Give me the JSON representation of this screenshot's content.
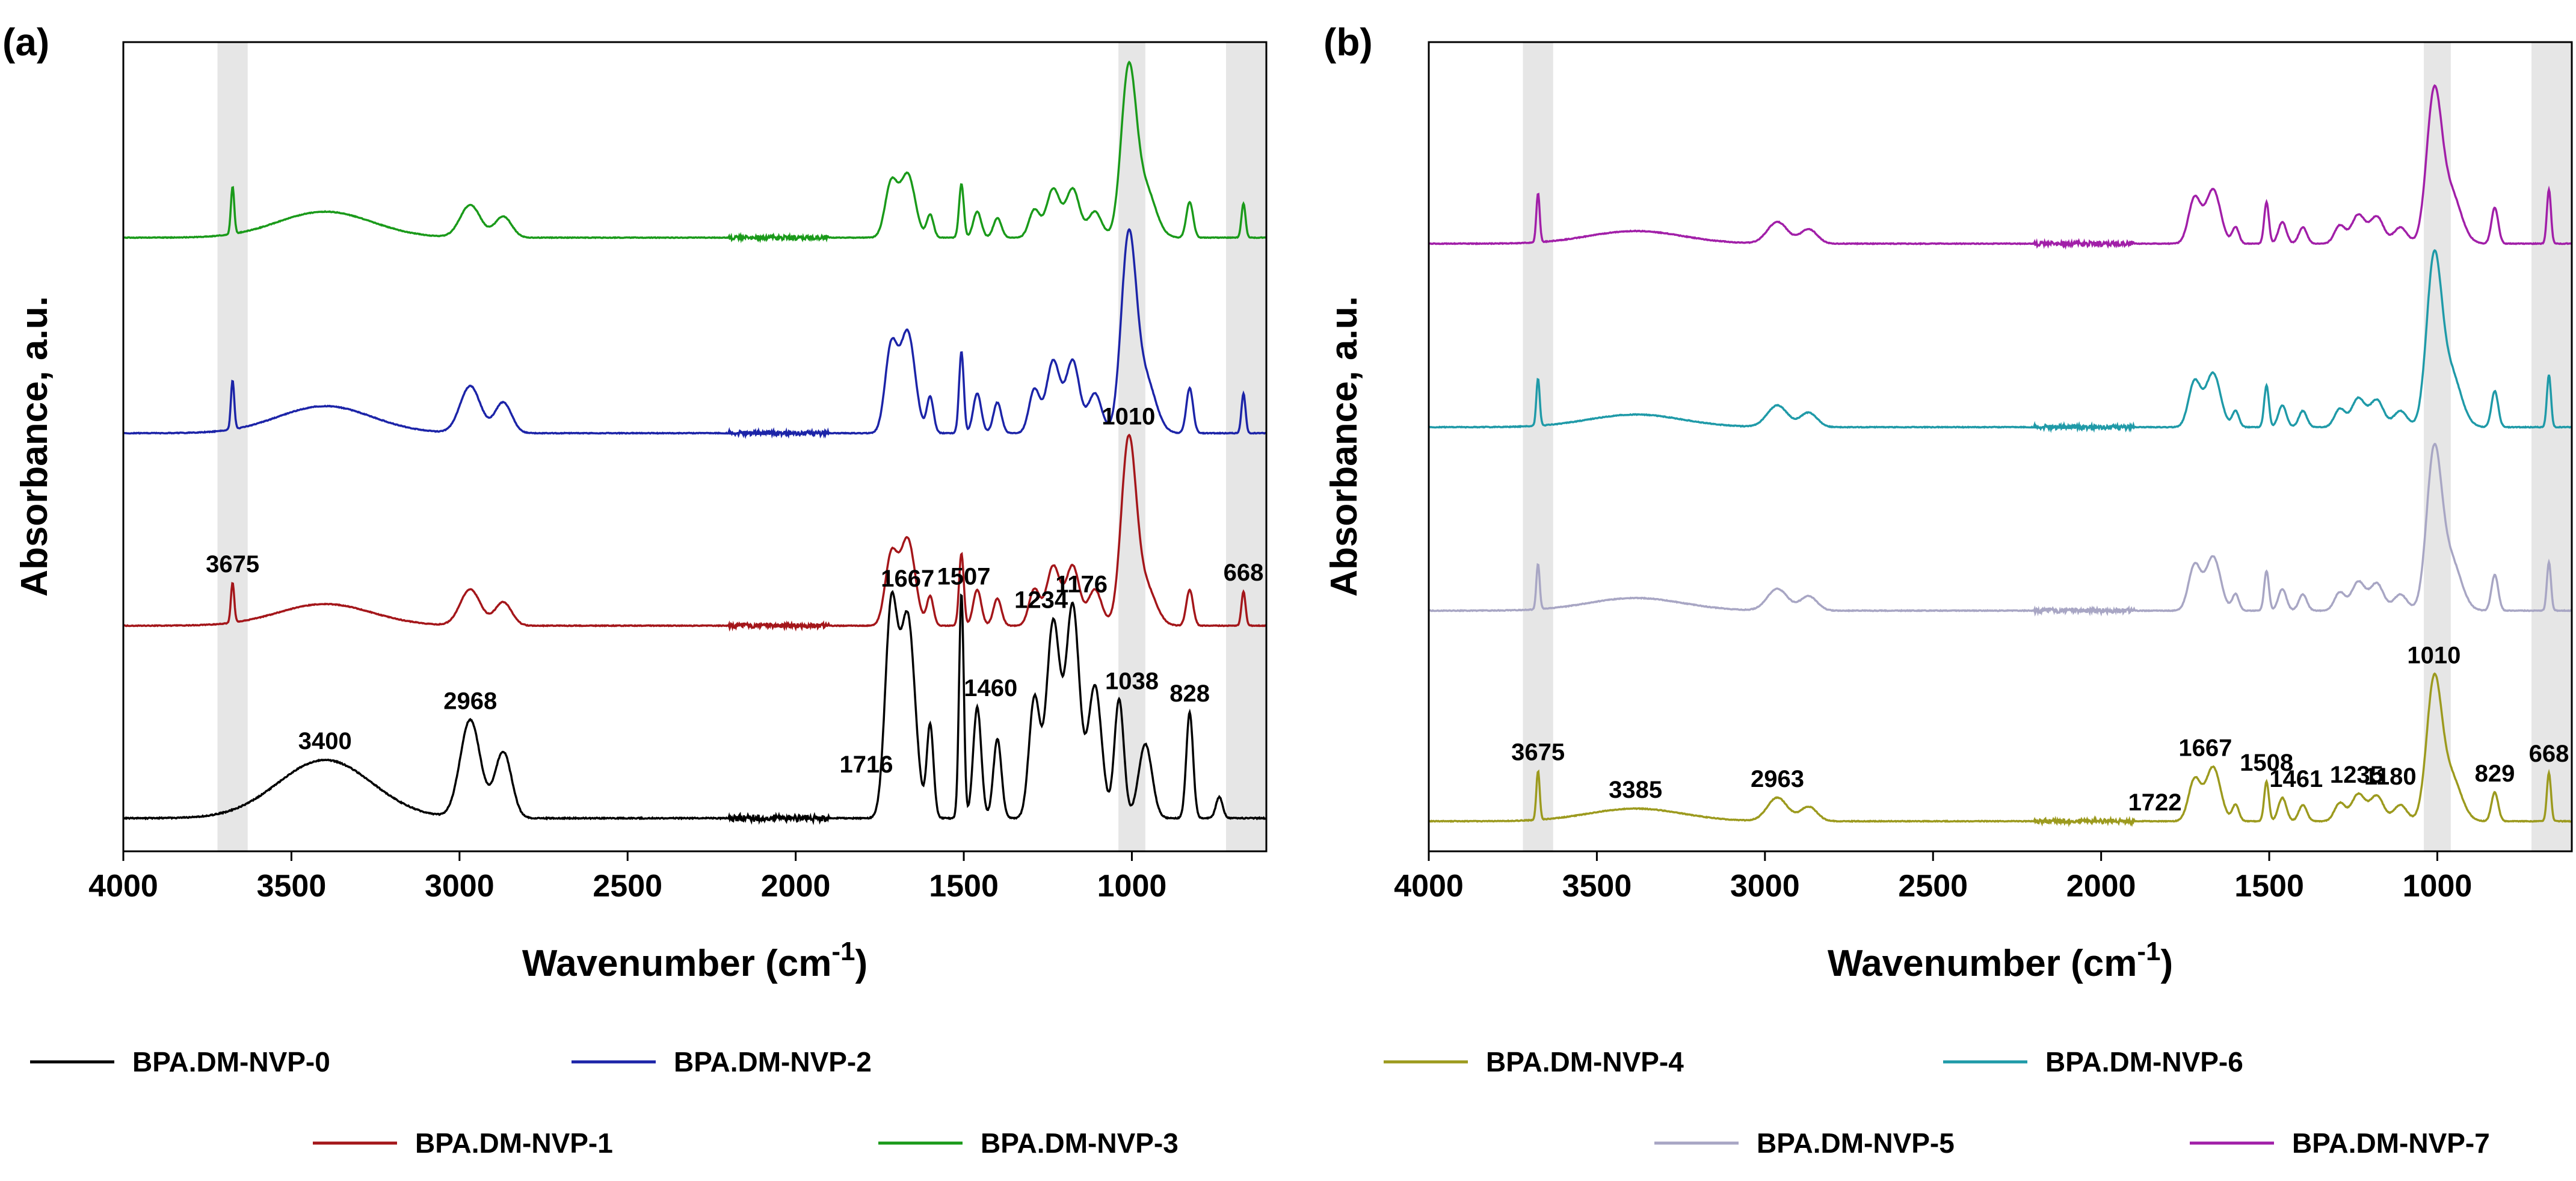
{
  "chart_data": [
    {
      "panel_label": "(a)",
      "type": "line",
      "title": "",
      "xlabel": "Wavenumber (cm",
      "xlabel_sup": "-1",
      "xlabel_close": ")",
      "ylabel": "Absorbance, a.u.",
      "xlim": [
        4000,
        600
      ],
      "x_reversed": true,
      "xticks": [
        "4000",
        "3500",
        "3000",
        "2500",
        "2000",
        "1500",
        "1000"
      ],
      "highlight_bands": [
        [
          3720,
          3630
        ],
        [
          1040,
          960
        ],
        [
          720,
          600
        ]
      ],
      "series": [
        {
          "name": "BPA.DM-NVP-0",
          "color": "#000000",
          "peaks": [
            [
              3400,
              0.22,
              140
            ],
            [
              2968,
              0.37,
              30
            ],
            [
              2870,
              0.25,
              25
            ],
            [
              1716,
              0.78,
              18
            ],
            [
              1667,
              0.76,
              22
            ],
            [
              1600,
              0.35,
              10
            ],
            [
              1507,
              0.85,
              7
            ],
            [
              1460,
              0.42,
              12
            ],
            [
              1400,
              0.3,
              12
            ],
            [
              1290,
              0.45,
              16
            ],
            [
              1234,
              0.74,
              20
            ],
            [
              1176,
              0.8,
              20
            ],
            [
              1110,
              0.5,
              20
            ],
            [
              1038,
              0.45,
              14
            ],
            [
              960,
              0.28,
              20
            ],
            [
              828,
              0.4,
              10
            ],
            [
              740,
              0.08,
              10
            ]
          ]
        },
        {
          "name": "BPA.DM-NVP-1",
          "color": "#a4161a",
          "peaks": [
            [
              3675,
              0.22,
              5
            ],
            [
              3400,
              0.12,
              140
            ],
            [
              2968,
              0.2,
              30
            ],
            [
              2870,
              0.13,
              25
            ],
            [
              1716,
              0.38,
              18
            ],
            [
              1667,
              0.48,
              22
            ],
            [
              1600,
              0.16,
              10
            ],
            [
              1507,
              0.4,
              7
            ],
            [
              1460,
              0.2,
              12
            ],
            [
              1400,
              0.15,
              12
            ],
            [
              1290,
              0.2,
              16
            ],
            [
              1234,
              0.33,
              20
            ],
            [
              1176,
              0.33,
              20
            ],
            [
              1110,
              0.2,
              20
            ],
            [
              1010,
              1.0,
              22
            ],
            [
              960,
              0.22,
              30
            ],
            [
              828,
              0.2,
              10
            ],
            [
              668,
              0.19,
              6
            ]
          ]
        },
        {
          "name": "BPA.DM-NVP-2",
          "color": "#1c24a8",
          "peaks": [
            [
              3675,
              0.27,
              5
            ],
            [
              3400,
              0.15,
              140
            ],
            [
              2968,
              0.26,
              30
            ],
            [
              2870,
              0.17,
              25
            ],
            [
              1716,
              0.47,
              18
            ],
            [
              1667,
              0.56,
              22
            ],
            [
              1600,
              0.2,
              10
            ],
            [
              1507,
              0.45,
              7
            ],
            [
              1460,
              0.22,
              12
            ],
            [
              1400,
              0.17,
              12
            ],
            [
              1290,
              0.24,
              16
            ],
            [
              1234,
              0.4,
              20
            ],
            [
              1176,
              0.4,
              20
            ],
            [
              1110,
              0.22,
              20
            ],
            [
              1010,
              1.05,
              22
            ],
            [
              960,
              0.3,
              30
            ],
            [
              828,
              0.25,
              10
            ],
            [
              668,
              0.22,
              6
            ]
          ]
        },
        {
          "name": "BPA.DM-NVP-3",
          "color": "#1a9a1a",
          "peaks": [
            [
              3675,
              0.29,
              5
            ],
            [
              3400,
              0.16,
              140
            ],
            [
              2968,
              0.2,
              30
            ],
            [
              2870,
              0.13,
              25
            ],
            [
              1716,
              0.33,
              18
            ],
            [
              1667,
              0.39,
              22
            ],
            [
              1600,
              0.14,
              10
            ],
            [
              1507,
              0.33,
              7
            ],
            [
              1460,
              0.16,
              12
            ],
            [
              1400,
              0.12,
              12
            ],
            [
              1290,
              0.17,
              16
            ],
            [
              1234,
              0.3,
              20
            ],
            [
              1176,
              0.3,
              20
            ],
            [
              1110,
              0.16,
              20
            ],
            [
              1010,
              1.0,
              22
            ],
            [
              960,
              0.3,
              30
            ],
            [
              828,
              0.22,
              10
            ],
            [
              668,
              0.21,
              6
            ]
          ]
        }
      ],
      "annotations": [
        {
          "text": "3400",
          "x": 3400,
          "series": "BPA.DM-NVP-0"
        },
        {
          "text": "2968",
          "x": 2968,
          "series": "BPA.DM-NVP-0"
        },
        {
          "text": "1716",
          "x": 1790,
          "series": "BPA.DM-NVP-0"
        },
        {
          "text": "1667",
          "x": 1667,
          "series": "BPA.DM-NVP-0"
        },
        {
          "text": "1507",
          "x": 1500,
          "series": "BPA.DM-NVP-0"
        },
        {
          "text": "1460",
          "x": 1420,
          "series": "BPA.DM-NVP-0"
        },
        {
          "text": "1234",
          "x": 1270,
          "series": "BPA.DM-NVP-0"
        },
        {
          "text": "1176",
          "x": 1150,
          "series": "BPA.DM-NVP-0"
        },
        {
          "text": "1038",
          "x": 1000,
          "series": "BPA.DM-NVP-0"
        },
        {
          "text": "828",
          "x": 828,
          "series": "BPA.DM-NVP-0"
        },
        {
          "text": "3675",
          "x": 3675,
          "series": "BPA.DM-NVP-1"
        },
        {
          "text": "1010",
          "x": 1010,
          "series": "BPA.DM-NVP-1"
        },
        {
          "text": "668",
          "x": 668,
          "series": "BPA.DM-NVP-1"
        }
      ]
    },
    {
      "panel_label": "(b)",
      "type": "line",
      "title": "",
      "xlabel": "Wavenumber (cm",
      "xlabel_sup": "-1",
      "xlabel_close": ")",
      "ylabel": "Absorbance, a.u.",
      "xlim": [
        4000,
        600
      ],
      "x_reversed": true,
      "xticks": [
        "4000",
        "3500",
        "3000",
        "2500",
        "2000",
        "1500",
        "1000"
      ],
      "highlight_bands": [
        [
          3720,
          3630
        ],
        [
          1040,
          960
        ],
        [
          720,
          600
        ]
      ],
      "series": [
        {
          "name": "BPA.DM-NVP-4",
          "color": "#9c9a1e",
          "peaks": [
            [
              3675,
              0.27,
              5
            ],
            [
              3385,
              0.07,
              140
            ],
            [
              2963,
              0.13,
              30
            ],
            [
              2870,
              0.08,
              25
            ],
            [
              1722,
              0.23,
              18
            ],
            [
              1667,
              0.3,
              22
            ],
            [
              1600,
              0.09,
              10
            ],
            [
              1508,
              0.22,
              7
            ],
            [
              1461,
              0.13,
              12
            ],
            [
              1400,
              0.09,
              12
            ],
            [
              1290,
              0.1,
              16
            ],
            [
              1235,
              0.15,
              20
            ],
            [
              1180,
              0.14,
              20
            ],
            [
              1110,
              0.09,
              20
            ],
            [
              1010,
              0.75,
              22
            ],
            [
              960,
              0.25,
              30
            ],
            [
              829,
              0.16,
              10
            ],
            [
              668,
              0.27,
              6
            ]
          ]
        },
        {
          "name": "BPA.DM-NVP-5",
          "color": "#a8a6c4",
          "peaks": [
            [
              3675,
              0.25,
              5
            ],
            [
              3385,
              0.07,
              140
            ],
            [
              2963,
              0.12,
              30
            ],
            [
              2870,
              0.08,
              25
            ],
            [
              1722,
              0.25,
              18
            ],
            [
              1667,
              0.3,
              22
            ],
            [
              1600,
              0.09,
              10
            ],
            [
              1508,
              0.22,
              7
            ],
            [
              1461,
              0.12,
              12
            ],
            [
              1400,
              0.09,
              12
            ],
            [
              1290,
              0.1,
              16
            ],
            [
              1235,
              0.16,
              20
            ],
            [
              1180,
              0.15,
              20
            ],
            [
              1110,
              0.09,
              20
            ],
            [
              1010,
              0.85,
              22
            ],
            [
              960,
              0.28,
              30
            ],
            [
              829,
              0.2,
              10
            ],
            [
              668,
              0.27,
              6
            ]
          ]
        },
        {
          "name": "BPA.DM-NVP-6",
          "color": "#1f9aa8",
          "peaks": [
            [
              3675,
              0.26,
              5
            ],
            [
              3385,
              0.07,
              140
            ],
            [
              2963,
              0.12,
              30
            ],
            [
              2870,
              0.08,
              25
            ],
            [
              1722,
              0.25,
              18
            ],
            [
              1667,
              0.3,
              22
            ],
            [
              1600,
              0.09,
              10
            ],
            [
              1508,
              0.23,
              7
            ],
            [
              1461,
              0.12,
              12
            ],
            [
              1400,
              0.09,
              12
            ],
            [
              1290,
              0.1,
              16
            ],
            [
              1235,
              0.16,
              20
            ],
            [
              1180,
              0.15,
              20
            ],
            [
              1110,
              0.09,
              20
            ],
            [
              1010,
              0.9,
              22
            ],
            [
              960,
              0.3,
              30
            ],
            [
              829,
              0.2,
              10
            ],
            [
              668,
              0.29,
              6
            ]
          ]
        },
        {
          "name": "BPA.DM-NVP-7",
          "color": "#a11fa8",
          "peaks": [
            [
              3675,
              0.27,
              5
            ],
            [
              3385,
              0.07,
              140
            ],
            [
              2963,
              0.12,
              30
            ],
            [
              2870,
              0.08,
              25
            ],
            [
              1722,
              0.25,
              18
            ],
            [
              1667,
              0.3,
              22
            ],
            [
              1600,
              0.09,
              10
            ],
            [
              1508,
              0.23,
              7
            ],
            [
              1461,
              0.12,
              12
            ],
            [
              1400,
              0.09,
              12
            ],
            [
              1290,
              0.1,
              16
            ],
            [
              1235,
              0.16,
              20
            ],
            [
              1180,
              0.15,
              20
            ],
            [
              1110,
              0.09,
              20
            ],
            [
              1010,
              0.8,
              22
            ],
            [
              960,
              0.28,
              30
            ],
            [
              829,
              0.2,
              10
            ],
            [
              668,
              0.3,
              6
            ]
          ]
        }
      ],
      "annotations": [
        {
          "text": "3675",
          "x": 3675,
          "series": "BPA.DM-NVP-4"
        },
        {
          "text": "3385",
          "x": 3385,
          "series": "BPA.DM-NVP-4"
        },
        {
          "text": "2963",
          "x": 2963,
          "series": "BPA.DM-NVP-4"
        },
        {
          "text": "1722",
          "x": 1840,
          "series": "BPA.DM-NVP-4"
        },
        {
          "text": "1667",
          "x": 1690,
          "series": "BPA.DM-NVP-4"
        },
        {
          "text": "1508",
          "x": 1508,
          "series": "BPA.DM-NVP-4"
        },
        {
          "text": "1461",
          "x": 1420,
          "series": "BPA.DM-NVP-4"
        },
        {
          "text": "1235",
          "x": 1240,
          "series": "BPA.DM-NVP-4"
        },
        {
          "text": "1180",
          "x": 1140,
          "series": "BPA.DM-NVP-4"
        },
        {
          "text": "1010",
          "x": 1010,
          "series": "BPA.DM-NVP-4"
        },
        {
          "text": "829",
          "x": 829,
          "series": "BPA.DM-NVP-4"
        },
        {
          "text": "668",
          "x": 668,
          "series": "BPA.DM-NVP-4"
        }
      ]
    }
  ]
}
